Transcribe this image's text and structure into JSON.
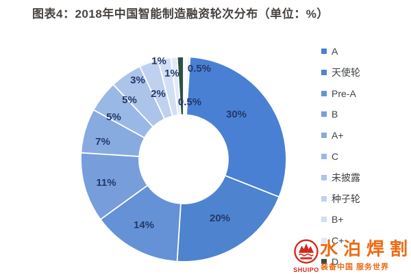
{
  "title": "图表4：2018年中国智能制造融资轮次分布（单位：%）",
  "colors": {
    "label_text": "#21386b",
    "title_text": "#474341",
    "legend_text": "#3d4144",
    "watermark_orange": "#ee6a12",
    "watermark_red": "#d3281c",
    "slice_border": "#ffffff"
  },
  "chart_data": {
    "type": "pie",
    "donut": true,
    "unit": "%",
    "title": "2018年中国智能制造融资轮次分布",
    "legend_position": "right",
    "legend": [
      "A",
      "天使轮",
      "Pre-A",
      "B",
      "A+",
      "C",
      "未披露",
      "种子轮",
      "B+",
      "C+",
      "D"
    ],
    "slices": [
      {
        "name": "",
        "label": "0.5%",
        "value": 0.5,
        "color": "#f6f8fd"
      },
      {
        "name": "",
        "label": "0.5%",
        "value": 0.5,
        "color": "#eef2fa"
      },
      {
        "name": "A",
        "label": "30%",
        "value": 30,
        "color": "#4a80d3"
      },
      {
        "name": "天使轮",
        "label": "20%",
        "value": 20,
        "color": "#4e83cf"
      },
      {
        "name": "Pre-A",
        "label": "14%",
        "value": 14,
        "color": "#6592d6"
      },
      {
        "name": "B",
        "label": "11%",
        "value": 11,
        "color": "#779eda"
      },
      {
        "name": "A+",
        "label": "7%",
        "value": 7,
        "color": "#88abdf"
      },
      {
        "name": "C",
        "label": "5%",
        "value": 5,
        "color": "#9ab8e5"
      },
      {
        "name": "未披露",
        "label": "5%",
        "value": 5,
        "color": "#adc4ea"
      },
      {
        "name": "种子轮",
        "label": "3%",
        "value": 3,
        "color": "#c0d1ef"
      },
      {
        "name": "B+",
        "label": "2%",
        "value": 2,
        "color": "#d2def4"
      },
      {
        "name": "C+",
        "label": "1%",
        "value": 1,
        "color": "#e2e9f8"
      },
      {
        "name": "D",
        "label": "1%",
        "value": 1,
        "color": "#2f4f42"
      }
    ]
  },
  "legend_items": [
    {
      "label": "A",
      "color": "#4a80d3"
    },
    {
      "label": "天使轮",
      "color": "#4e83cf"
    },
    {
      "label": "Pre-A",
      "color": "#6592d6"
    },
    {
      "label": "B",
      "color": "#779eda"
    },
    {
      "label": "A+",
      "color": "#88abdf"
    },
    {
      "label": "C",
      "color": "#9ab8e5"
    },
    {
      "label": "未披露",
      "color": "#adc4ea"
    },
    {
      "label": "种子轮",
      "color": "#c0d1ef"
    },
    {
      "label": "B+",
      "color": "#d2def4"
    },
    {
      "label": "C+",
      "color": "#e2e9f8"
    },
    {
      "label": "D",
      "color": "#2f4f42"
    }
  ],
  "watermark": {
    "brand": "水泊焊割",
    "slogan": "装备中国 服务世界",
    "logo_text": "SHUIPO"
  }
}
